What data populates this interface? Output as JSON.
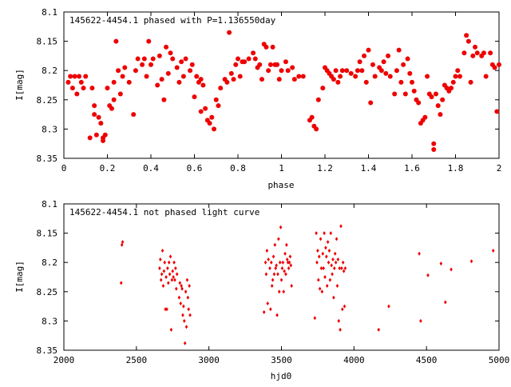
{
  "chart_data": [
    {
      "type": "scatter",
      "title": "145622-4454.1 phased with P=1.136550day",
      "xlabel": "phase",
      "ylabel": "I[mag]",
      "xlim": [
        0,
        2
      ],
      "ylim": [
        8.1,
        8.35
      ],
      "y_inverted": true,
      "grid": false,
      "marker": "filled-circle",
      "color": "#ee0000",
      "x_ticks": [
        "0",
        "0.2",
        "0.4",
        "0.6",
        "0.8",
        "1",
        "1.2",
        "1.4",
        "1.6",
        "1.8",
        "2"
      ],
      "y_ticks": [
        "8.1",
        "8.15",
        "8.2",
        "8.25",
        "8.3",
        "8.35"
      ],
      "points": [
        [
          0.02,
          8.22
        ],
        [
          0.03,
          8.21
        ],
        [
          0.04,
          8.23
        ],
        [
          0.05,
          8.21
        ],
        [
          0.06,
          8.24
        ],
        [
          0.07,
          8.21
        ],
        [
          0.08,
          8.22
        ],
        [
          0.09,
          8.23
        ],
        [
          0.1,
          8.21
        ],
        [
          0.12,
          8.315
        ],
        [
          0.13,
          8.23
        ],
        [
          0.14,
          8.26
        ],
        [
          0.14,
          8.275
        ],
        [
          0.15,
          8.31
        ],
        [
          0.16,
          8.28
        ],
        [
          0.17,
          8.29
        ],
        [
          0.18,
          8.315
        ],
        [
          0.18,
          8.32
        ],
        [
          0.19,
          8.31
        ],
        [
          0.2,
          8.23
        ],
        [
          0.21,
          8.26
        ],
        [
          0.22,
          8.265
        ],
        [
          0.23,
          8.25
        ],
        [
          0.23,
          8.22
        ],
        [
          0.24,
          8.15
        ],
        [
          0.25,
          8.2
        ],
        [
          0.26,
          8.24
        ],
        [
          0.27,
          8.21
        ],
        [
          0.28,
          8.195
        ],
        [
          0.3,
          8.22
        ],
        [
          0.32,
          8.275
        ],
        [
          0.33,
          8.2
        ],
        [
          0.34,
          8.18
        ],
        [
          0.36,
          8.19
        ],
        [
          0.37,
          8.18
        ],
        [
          0.38,
          8.21
        ],
        [
          0.39,
          8.15
        ],
        [
          0.4,
          8.19
        ],
        [
          0.41,
          8.18
        ],
        [
          0.43,
          8.225
        ],
        [
          0.44,
          8.175
        ],
        [
          0.45,
          8.215
        ],
        [
          0.46,
          8.25
        ],
        [
          0.47,
          8.16
        ],
        [
          0.48,
          8.205
        ],
        [
          0.49,
          8.17
        ],
        [
          0.5,
          8.18
        ],
        [
          0.52,
          8.195
        ],
        [
          0.53,
          8.22
        ],
        [
          0.54,
          8.185
        ],
        [
          0.55,
          8.21
        ],
        [
          0.56,
          8.18
        ],
        [
          0.58,
          8.2
        ],
        [
          0.59,
          8.19
        ],
        [
          0.6,
          8.245
        ],
        [
          0.61,
          8.21
        ],
        [
          0.62,
          8.22
        ],
        [
          0.63,
          8.215
        ],
        [
          0.63,
          8.27
        ],
        [
          0.64,
          8.225
        ],
        [
          0.65,
          8.265
        ],
        [
          0.66,
          8.285
        ],
        [
          0.67,
          8.29
        ],
        [
          0.68,
          8.28
        ],
        [
          0.69,
          8.3
        ],
        [
          0.7,
          8.25
        ],
        [
          0.71,
          8.26
        ],
        [
          0.72,
          8.23
        ],
        [
          0.74,
          8.215
        ],
        [
          0.75,
          8.22
        ],
        [
          0.76,
          8.135
        ],
        [
          0.77,
          8.205
        ],
        [
          0.78,
          8.215
        ],
        [
          0.79,
          8.19
        ],
        [
          0.8,
          8.18
        ],
        [
          0.81,
          8.21
        ],
        [
          0.82,
          8.185
        ],
        [
          0.83,
          8.185
        ],
        [
          0.85,
          8.18
        ],
        [
          0.87,
          8.17
        ],
        [
          0.88,
          8.18
        ],
        [
          0.89,
          8.195
        ],
        [
          0.9,
          8.19
        ],
        [
          0.91,
          8.215
        ],
        [
          0.92,
          8.155
        ],
        [
          0.93,
          8.16
        ],
        [
          0.94,
          8.2
        ],
        [
          0.95,
          8.19
        ],
        [
          0.96,
          8.16
        ],
        [
          0.97,
          8.19
        ],
        [
          0.98,
          8.19
        ],
        [
          0.99,
          8.215
        ],
        [
          1.0,
          8.2
        ],
        [
          1.02,
          8.185
        ],
        [
          1.03,
          8.2
        ],
        [
          1.05,
          8.195
        ],
        [
          1.06,
          8.215
        ],
        [
          1.08,
          8.21
        ],
        [
          1.1,
          8.21
        ],
        [
          1.13,
          8.285
        ],
        [
          1.14,
          8.28
        ],
        [
          1.15,
          8.295
        ],
        [
          1.16,
          8.3
        ],
        [
          1.17,
          8.25
        ],
        [
          1.19,
          8.23
        ],
        [
          1.2,
          8.195
        ],
        [
          1.21,
          8.2
        ],
        [
          1.22,
          8.205
        ],
        [
          1.23,
          8.21
        ],
        [
          1.24,
          8.215
        ],
        [
          1.25,
          8.2
        ],
        [
          1.26,
          8.22
        ],
        [
          1.27,
          8.21
        ],
        [
          1.28,
          8.2
        ],
        [
          1.3,
          8.2
        ],
        [
          1.32,
          8.205
        ],
        [
          1.34,
          8.21
        ],
        [
          1.35,
          8.2
        ],
        [
          1.36,
          8.185
        ],
        [
          1.37,
          8.2
        ],
        [
          1.38,
          8.175
        ],
        [
          1.39,
          8.22
        ],
        [
          1.4,
          8.165
        ],
        [
          1.41,
          8.255
        ],
        [
          1.42,
          8.19
        ],
        [
          1.43,
          8.21
        ],
        [
          1.45,
          8.195
        ],
        [
          1.46,
          8.2
        ],
        [
          1.47,
          8.185
        ],
        [
          1.48,
          8.205
        ],
        [
          1.49,
          8.175
        ],
        [
          1.5,
          8.21
        ],
        [
          1.52,
          8.24
        ],
        [
          1.53,
          8.2
        ],
        [
          1.54,
          8.165
        ],
        [
          1.55,
          8.22
        ],
        [
          1.56,
          8.19
        ],
        [
          1.57,
          8.24
        ],
        [
          1.58,
          8.18
        ],
        [
          1.59,
          8.205
        ],
        [
          1.6,
          8.22
        ],
        [
          1.61,
          8.235
        ],
        [
          1.62,
          8.25
        ],
        [
          1.63,
          8.255
        ],
        [
          1.64,
          8.29
        ],
        [
          1.65,
          8.285
        ],
        [
          1.66,
          8.28
        ],
        [
          1.67,
          8.21
        ],
        [
          1.68,
          8.24
        ],
        [
          1.69,
          8.245
        ],
        [
          1.7,
          8.325
        ],
        [
          1.7,
          8.335
        ],
        [
          1.71,
          8.24
        ],
        [
          1.72,
          8.26
        ],
        [
          1.73,
          8.275
        ],
        [
          1.74,
          8.25
        ],
        [
          1.75,
          8.225
        ],
        [
          1.76,
          8.23
        ],
        [
          1.77,
          8.235
        ],
        [
          1.78,
          8.23
        ],
        [
          1.79,
          8.22
        ],
        [
          1.8,
          8.21
        ],
        [
          1.81,
          8.2
        ],
        [
          1.82,
          8.21
        ],
        [
          1.84,
          8.17
        ],
        [
          1.85,
          8.14
        ],
        [
          1.86,
          8.15
        ],
        [
          1.87,
          8.22
        ],
        [
          1.88,
          8.175
        ],
        [
          1.89,
          8.16
        ],
        [
          1.9,
          8.17
        ],
        [
          1.92,
          8.175
        ],
        [
          1.93,
          8.17
        ],
        [
          1.94,
          8.21
        ],
        [
          1.96,
          8.17
        ],
        [
          1.97,
          8.19
        ],
        [
          1.98,
          8.195
        ],
        [
          1.99,
          8.27
        ],
        [
          2.0,
          8.19
        ]
      ]
    },
    {
      "type": "scatter",
      "title": "145622-4454.1 not phased light curve",
      "xlabel": "hjd0",
      "ylabel": "I[mag]",
      "xlim": [
        2000,
        5000
      ],
      "ylim": [
        8.1,
        8.35
      ],
      "y_inverted": true,
      "grid": false,
      "marker": "small-diamond",
      "color": "#ee0000",
      "x_ticks": [
        "2000",
        "2500",
        "3000",
        "3500",
        "4000",
        "4500",
        "5000"
      ],
      "y_ticks": [
        "8.1",
        "8.15",
        "8.2",
        "8.25",
        "8.3",
        "8.35"
      ],
      "points": [
        [
          2395,
          8.235
        ],
        [
          2400,
          8.17
        ],
        [
          2405,
          8.165
        ],
        [
          2660,
          8.21
        ],
        [
          2665,
          8.195
        ],
        [
          2670,
          8.23
        ],
        [
          2675,
          8.22
        ],
        [
          2680,
          8.18
        ],
        [
          2685,
          8.24
        ],
        [
          2690,
          8.215
        ],
        [
          2695,
          8.2
        ],
        [
          2700,
          8.28
        ],
        [
          2705,
          8.225
        ],
        [
          2710,
          8.28
        ],
        [
          2715,
          8.21
        ],
        [
          2720,
          8.235
        ],
        [
          2725,
          8.2
        ],
        [
          2730,
          8.22
        ],
        [
          2735,
          8.19
        ],
        [
          2740,
          8.315
        ],
        [
          2745,
          8.23
        ],
        [
          2750,
          8.215
        ],
        [
          2755,
          8.225
        ],
        [
          2760,
          8.2
        ],
        [
          2765,
          8.23
        ],
        [
          2770,
          8.21
        ],
        [
          2775,
          8.245
        ],
        [
          2780,
          8.22
        ],
        [
          2795,
          8.26
        ],
        [
          2800,
          8.235
        ],
        [
          2805,
          8.27
        ],
        [
          2810,
          8.24
        ],
        [
          2815,
          8.245
        ],
        [
          2820,
          8.29
        ],
        [
          2825,
          8.275
        ],
        [
          2830,
          8.3
        ],
        [
          2835,
          8.338
        ],
        [
          2840,
          8.25
        ],
        [
          2845,
          8.31
        ],
        [
          2850,
          8.23
        ],
        [
          2855,
          8.26
        ],
        [
          2860,
          8.28
        ],
        [
          2865,
          8.24
        ],
        [
          2870,
          8.29
        ],
        [
          3380,
          8.285
        ],
        [
          3390,
          8.2
        ],
        [
          3395,
          8.22
        ],
        [
          3400,
          8.18
        ],
        [
          3405,
          8.27
        ],
        [
          3410,
          8.195
        ],
        [
          3420,
          8.21
        ],
        [
          3425,
          8.28
        ],
        [
          3430,
          8.2
        ],
        [
          3435,
          8.24
        ],
        [
          3440,
          8.23
        ],
        [
          3445,
          8.19
        ],
        [
          3450,
          8.22
        ],
        [
          3455,
          8.17
        ],
        [
          3460,
          8.21
        ],
        [
          3465,
          8.205
        ],
        [
          3470,
          8.29
        ],
        [
          3475,
          8.22
        ],
        [
          3480,
          8.16
        ],
        [
          3485,
          8.25
        ],
        [
          3490,
          8.2
        ],
        [
          3495,
          8.14
        ],
        [
          3500,
          8.23
        ],
        [
          3505,
          8.21
        ],
        [
          3510,
          8.2
        ],
        [
          3515,
          8.25
        ],
        [
          3520,
          8.215
        ],
        [
          3525,
          8.185
        ],
        [
          3530,
          8.22
        ],
        [
          3535,
          8.17
        ],
        [
          3540,
          8.195
        ],
        [
          3545,
          8.2
        ],
        [
          3550,
          8.21
        ],
        [
          3555,
          8.2
        ],
        [
          3560,
          8.19
        ],
        [
          3565,
          8.205
        ],
        [
          3570,
          8.24
        ],
        [
          3730,
          8.295
        ],
        [
          3740,
          8.15
        ],
        [
          3745,
          8.2
        ],
        [
          3750,
          8.18
        ],
        [
          3755,
          8.23
        ],
        [
          3760,
          8.19
        ],
        [
          3765,
          8.245
        ],
        [
          3770,
          8.16
        ],
        [
          3775,
          8.21
        ],
        [
          3780,
          8.25
        ],
        [
          3785,
          8.185
        ],
        [
          3790,
          8.21
        ],
        [
          3795,
          8.15
        ],
        [
          3800,
          8.225
        ],
        [
          3805,
          8.175
        ],
        [
          3810,
          8.19
        ],
        [
          3815,
          8.24
        ],
        [
          3820,
          8.165
        ],
        [
          3825,
          8.2
        ],
        [
          3830,
          8.18
        ],
        [
          3835,
          8.23
        ],
        [
          3840,
          8.15
        ],
        [
          3845,
          8.205
        ],
        [
          3850,
          8.22
        ],
        [
          3855,
          8.195
        ],
        [
          3860,
          8.26
        ],
        [
          3865,
          8.21
        ],
        [
          3870,
          8.185
        ],
        [
          3875,
          8.2
        ],
        [
          3880,
          8.16
        ],
        [
          3885,
          8.24
        ],
        [
          3890,
          8.195
        ],
        [
          3895,
          8.3
        ],
        [
          3900,
          8.21
        ],
        [
          3905,
          8.315
        ],
        [
          3910,
          8.138
        ],
        [
          3915,
          8.21
        ],
        [
          3920,
          8.28
        ],
        [
          3925,
          8.2
        ],
        [
          3930,
          8.215
        ],
        [
          3935,
          8.275
        ],
        [
          3940,
          8.21
        ],
        [
          4170,
          8.315
        ],
        [
          4240,
          8.275
        ],
        [
          4450,
          8.185
        ],
        [
          4460,
          8.3
        ],
        [
          4510,
          8.222
        ],
        [
          4600,
          8.202
        ],
        [
          4630,
          8.268
        ],
        [
          4670,
          8.212
        ],
        [
          4810,
          8.198
        ],
        [
          4960,
          8.18
        ]
      ]
    }
  ]
}
